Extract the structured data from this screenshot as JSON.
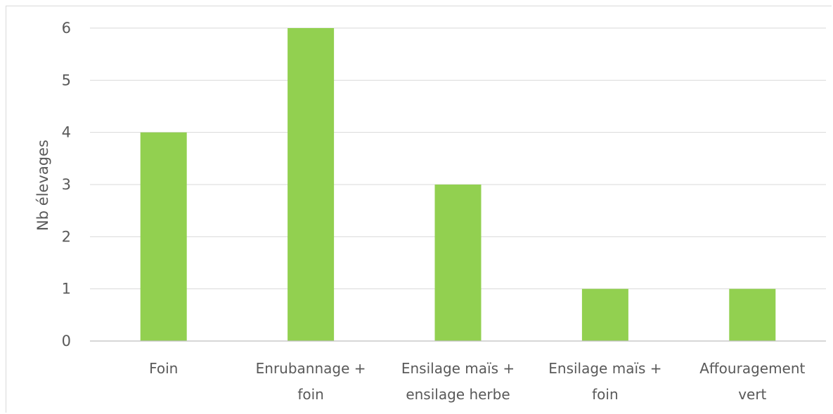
{
  "chart_data": {
    "type": "bar",
    "categories": [
      [
        "Foin"
      ],
      [
        "Enrubannage +",
        "foin"
      ],
      [
        "Ensilage maïs +",
        "ensilage herbe"
      ],
      [
        "Ensilage maïs +",
        "foin"
      ],
      [
        "Affouragement",
        "vert"
      ]
    ],
    "values": [
      4,
      6,
      3,
      1,
      1
    ],
    "ylabel": "Nb élevages",
    "xlabel": "",
    "ylim": [
      0,
      6
    ],
    "yticks": [
      "0",
      "1",
      "2",
      "3",
      "4",
      "5",
      "6"
    ],
    "grid": true,
    "legend": "none",
    "colors": {
      "bar": "#92d050",
      "grid": "#d9d9d9",
      "axis": "#bfbfbf",
      "text": "#595959"
    }
  }
}
